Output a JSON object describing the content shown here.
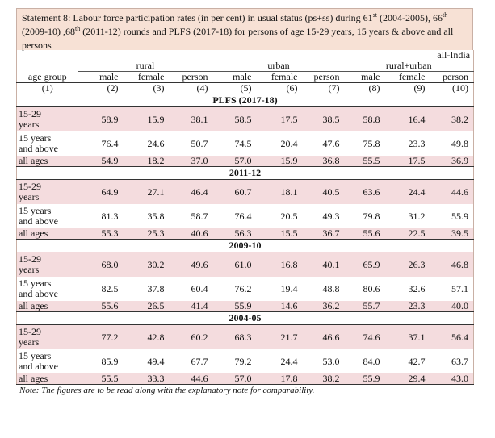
{
  "title": {
    "part1": "Statement 8: Labour force participation rates (in per cent) in  usual status (ps+ss) during 61",
    "sup1": "st",
    "part2": " (2004-2005),  66",
    "sup2": "th",
    "part3": " (2009-10) ,68",
    "sup3": "th",
    "part4": " (2011-12) rounds and PLFS (2017-18) for persons of age 15-29 years, 15 years & above and all persons"
  },
  "region": "all-India",
  "groups": {
    "rural": "rural",
    "urban": "urban",
    "combined": "rural+urban"
  },
  "columns": [
    "age group",
    "male",
    "female",
    "person",
    "male",
    "female",
    "person",
    "male",
    "female",
    "person"
  ],
  "column_numbers": [
    "(1)",
    "(2)",
    "(3)",
    "(4)",
    "(5)",
    "(6)",
    "(7)",
    "(8)",
    "(9)",
    "(10)"
  ],
  "sections": [
    {
      "name": "PLFS (2017-18)",
      "rows": [
        {
          "label1": "15-29",
          "label2": "years",
          "values": [
            "58.9",
            "15.9",
            "38.1",
            "58.5",
            "17.5",
            "38.5",
            "58.8",
            "16.4",
            "38.2"
          ]
        },
        {
          "label1": "15 years",
          "label2": "and above",
          "values": [
            "76.4",
            "24.6",
            "50.7",
            "74.5",
            "20.4",
            "47.6",
            "75.8",
            "23.3",
            "49.8"
          ]
        },
        {
          "label1": "all ages",
          "label2": "",
          "values": [
            "54.9",
            "18.2",
            "37.0",
            "57.0",
            "15.9",
            "36.8",
            "55.5",
            "17.5",
            "36.9"
          ]
        }
      ]
    },
    {
      "name": "2011-12",
      "rows": [
        {
          "label1": "15-29",
          "label2": "years",
          "values": [
            "64.9",
            "27.1",
            "46.4",
            "60.7",
            "18.1",
            "40.5",
            "63.6",
            "24.4",
            "44.6"
          ]
        },
        {
          "label1": "15 years",
          "label2": "and above",
          "values": [
            "81.3",
            "35.8",
            "58.7",
            "76.4",
            "20.5",
            "49.3",
            "79.8",
            "31.2",
            "55.9"
          ]
        },
        {
          "label1": "all ages",
          "label2": "",
          "values": [
            "55.3",
            "25.3",
            "40.6",
            "56.3",
            "15.5",
            "36.7",
            "55.6",
            "22.5",
            "39.5"
          ]
        }
      ]
    },
    {
      "name": "2009-10",
      "rows": [
        {
          "label1": "15-29",
          "label2": "years",
          "values": [
            "68.0",
            "30.2",
            "49.6",
            "61.0",
            "16.8",
            "40.1",
            "65.9",
            "26.3",
            "46.8"
          ]
        },
        {
          "label1": "15 years",
          "label2": "and above",
          "values": [
            "82.5",
            "37.8",
            "60.4",
            "76.2",
            "19.4",
            "48.8",
            "80.6",
            "32.6",
            "57.1"
          ]
        },
        {
          "label1": "all ages",
          "label2": "",
          "values": [
            "55.6",
            "26.5",
            "41.4",
            "55.9",
            "14.6",
            "36.2",
            "55.7",
            "23.3",
            "40.0"
          ]
        }
      ]
    },
    {
      "name": "2004-05",
      "rows": [
        {
          "label1": "15-29",
          "label2": "years",
          "values": [
            "77.2",
            "42.8",
            "60.2",
            "68.3",
            "21.7",
            "46.6",
            "74.6",
            "37.1",
            "56.4"
          ]
        },
        {
          "label1": "15 years",
          "label2": "and above",
          "values": [
            "85.9",
            "49.4",
            "67.7",
            "79.2",
            "24.4",
            "53.0",
            "84.0",
            "42.7",
            "63.7"
          ]
        },
        {
          "label1": "all ages",
          "label2": "",
          "values": [
            "55.5",
            "33.3",
            "44.6",
            "57.0",
            "17.8",
            "38.2",
            "55.9",
            "29.4",
            "43.0"
          ]
        }
      ]
    }
  ],
  "note": "Note:  The figures are to be read along with the explanatory note for comparability."
}
